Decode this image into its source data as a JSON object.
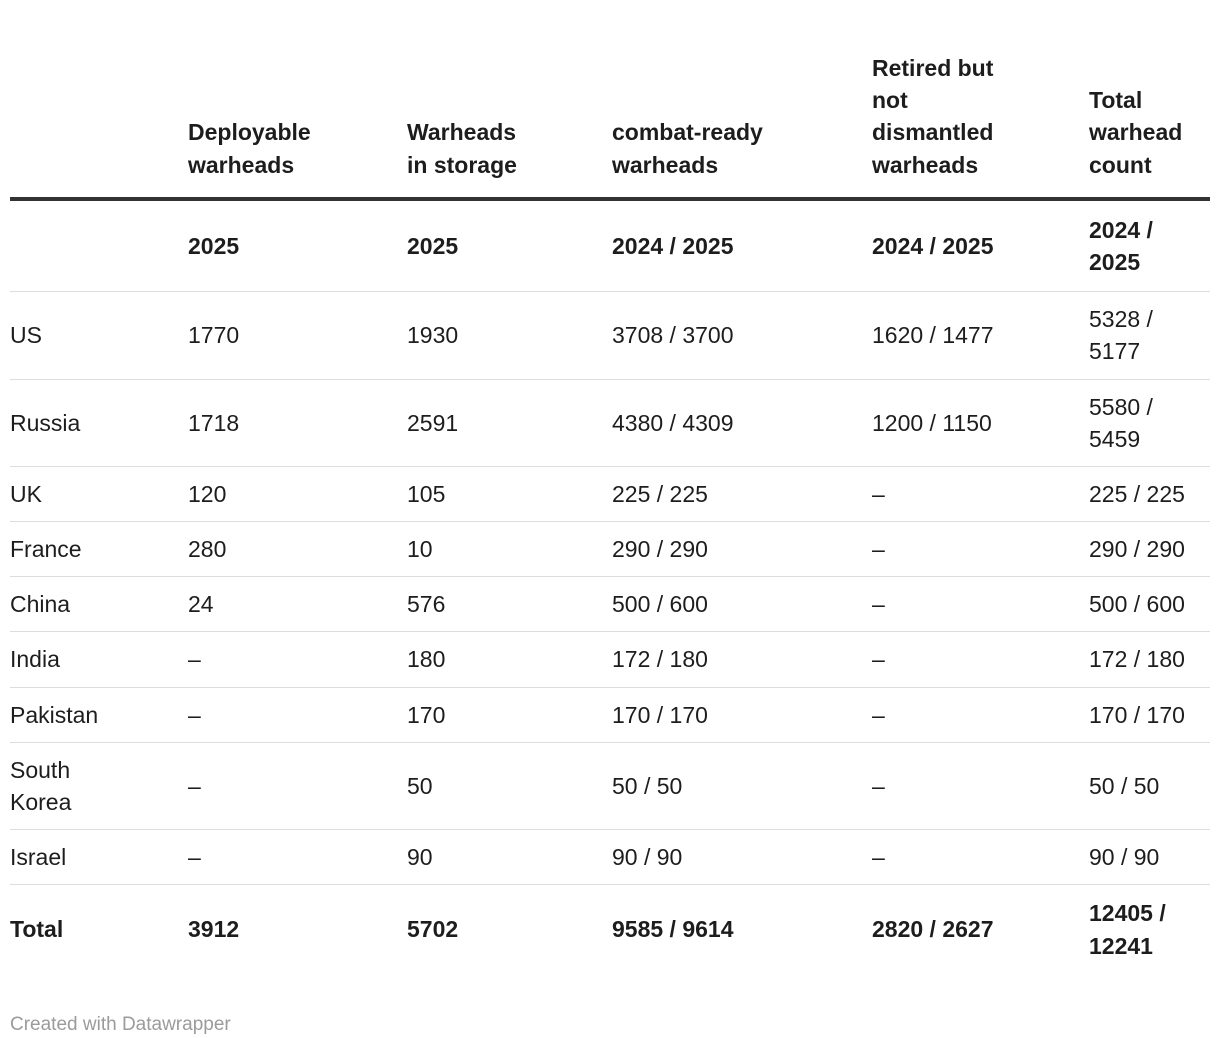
{
  "colors": {
    "text": "#1d1d1d",
    "header_rule": "#333333",
    "row_divider": "#dddddd",
    "footer_text": "#9b9b9b",
    "background": "#ffffff"
  },
  "footer": {
    "credit": "Created with Datawrapper"
  },
  "chart_data": {
    "type": "table",
    "columns": [
      {
        "label": "",
        "year": ""
      },
      {
        "label": "Deployable warheads",
        "year": "2025"
      },
      {
        "label": "Warheads in storage",
        "year": "2025"
      },
      {
        "label": "combat-ready warheads",
        "year": "2024 / 2025"
      },
      {
        "label": "Retired but not dismantled warheads",
        "year": "2024 / 2025"
      },
      {
        "label": "Total warhead count",
        "year": "2024 / 2025"
      }
    ],
    "rows": [
      {
        "country": "US",
        "values": [
          "1770",
          "1930",
          "3708 / 3700",
          "1620 / 1477",
          "5328 / 5177"
        ]
      },
      {
        "country": "Russia",
        "values": [
          "1718",
          "2591",
          "4380 / 4309",
          "1200 / 1150",
          "5580 / 5459"
        ]
      },
      {
        "country": "UK",
        "values": [
          "120",
          "105",
          "225 / 225",
          "–",
          "225 / 225"
        ]
      },
      {
        "country": "France",
        "values": [
          "280",
          "10",
          "290 / 290",
          "–",
          "290 / 290"
        ]
      },
      {
        "country": "China",
        "values": [
          "24",
          "576",
          "500 / 600",
          "–",
          "500 / 600"
        ]
      },
      {
        "country": "India",
        "values": [
          "–",
          "180",
          "172 / 180",
          "–",
          "172 / 180"
        ]
      },
      {
        "country": "Pakistan",
        "values": [
          "–",
          "170",
          "170 / 170",
          "–",
          "170 / 170"
        ]
      },
      {
        "country": "South Korea",
        "values": [
          "–",
          "50",
          "50 / 50",
          "–",
          "50 / 50"
        ]
      },
      {
        "country": "Israel",
        "values": [
          "–",
          "90",
          "90 / 90",
          "–",
          "90 / 90"
        ]
      },
      {
        "country": "Total",
        "values": [
          "3912",
          "5702",
          "9585 / 9614",
          "2820 / 2627",
          "12405 / 12241"
        ]
      }
    ]
  }
}
